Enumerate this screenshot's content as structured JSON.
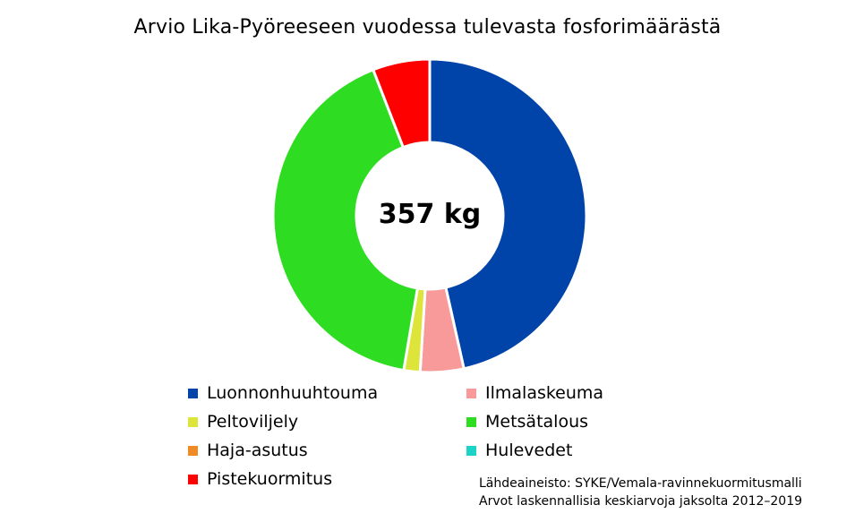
{
  "chart_data": {
    "type": "pie",
    "subtype": "donut",
    "title": "Arvio Lika-Pyöreeseen vuodessa tulevasta fosforimäärästä",
    "center_label": "357 kg",
    "total": 357,
    "unit": "kg",
    "slices": [
      {
        "name": "Luonnonhuuhtouma",
        "value": 166,
        "color": "#0043A9"
      },
      {
        "name": "Ilmalaskeuma",
        "value": 16,
        "color": "#F89A9A"
      },
      {
        "name": "Peltoviljely",
        "value": 6,
        "color": "#DDE53A"
      },
      {
        "name": "Metsätalous",
        "value": 148,
        "color": "#2EDD21"
      },
      {
        "name": "Haja-asutus",
        "value": 0,
        "color": "#F08A24"
      },
      {
        "name": "Hulevedet",
        "value": 0,
        "color": "#1BD3C6"
      },
      {
        "name": "Pistekuormitus",
        "value": 21,
        "color": "#FF0000"
      }
    ],
    "legend": [
      {
        "label": "Luonnonhuuhtouma",
        "color": "#0043A9"
      },
      {
        "label": "Ilmalaskeuma",
        "color": "#F89A9A"
      },
      {
        "label": "Peltoviljely",
        "color": "#DDE53A"
      },
      {
        "label": "Metsätalous",
        "color": "#2EDD21"
      },
      {
        "label": "Haja-asutus",
        "color": "#F08A24"
      },
      {
        "label": "Hulevedet",
        "color": "#1BD3C6"
      },
      {
        "label": "Pistekuormitus",
        "color": "#FF0000"
      }
    ],
    "legend_placement": "bottom"
  },
  "source": {
    "line1": "Lähdeaineisto: SYKE/Vemala-ravinnekuormitusmalli",
    "line2": "Arvot laskennallisia keskiarvoja jaksolta 2012–2019"
  }
}
